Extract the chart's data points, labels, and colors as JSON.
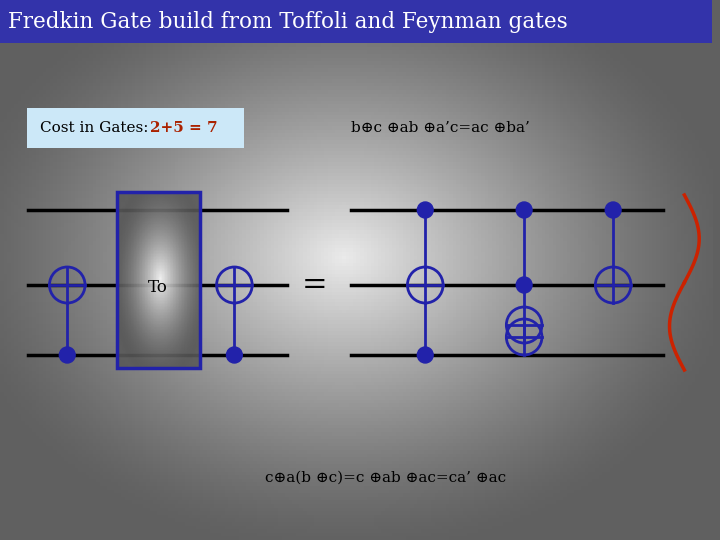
{
  "title": "Fredkin Gate build from Toffoli and Feynman gates",
  "title_bg": "#3333aa",
  "title_color": "#ffffff",
  "cost_text": "Cost in Gates:  ",
  "cost_value": "2+5 = 7",
  "cost_bg": "#cce8f8",
  "cost_text_color": "#000000",
  "cost_value_color": "#aa2200",
  "formula_top": "b⊕c ⊕ab ⊕a’c=ac ⊕ba’",
  "formula_bottom": "c⊕a(b ⊕c)=c ⊕ab ⊕ac=ca’ ⊕ac",
  "gate_color": "#2222aa",
  "line_color": "#000000",
  "toffoli_label": "To",
  "red_brace_color": "#cc2200"
}
